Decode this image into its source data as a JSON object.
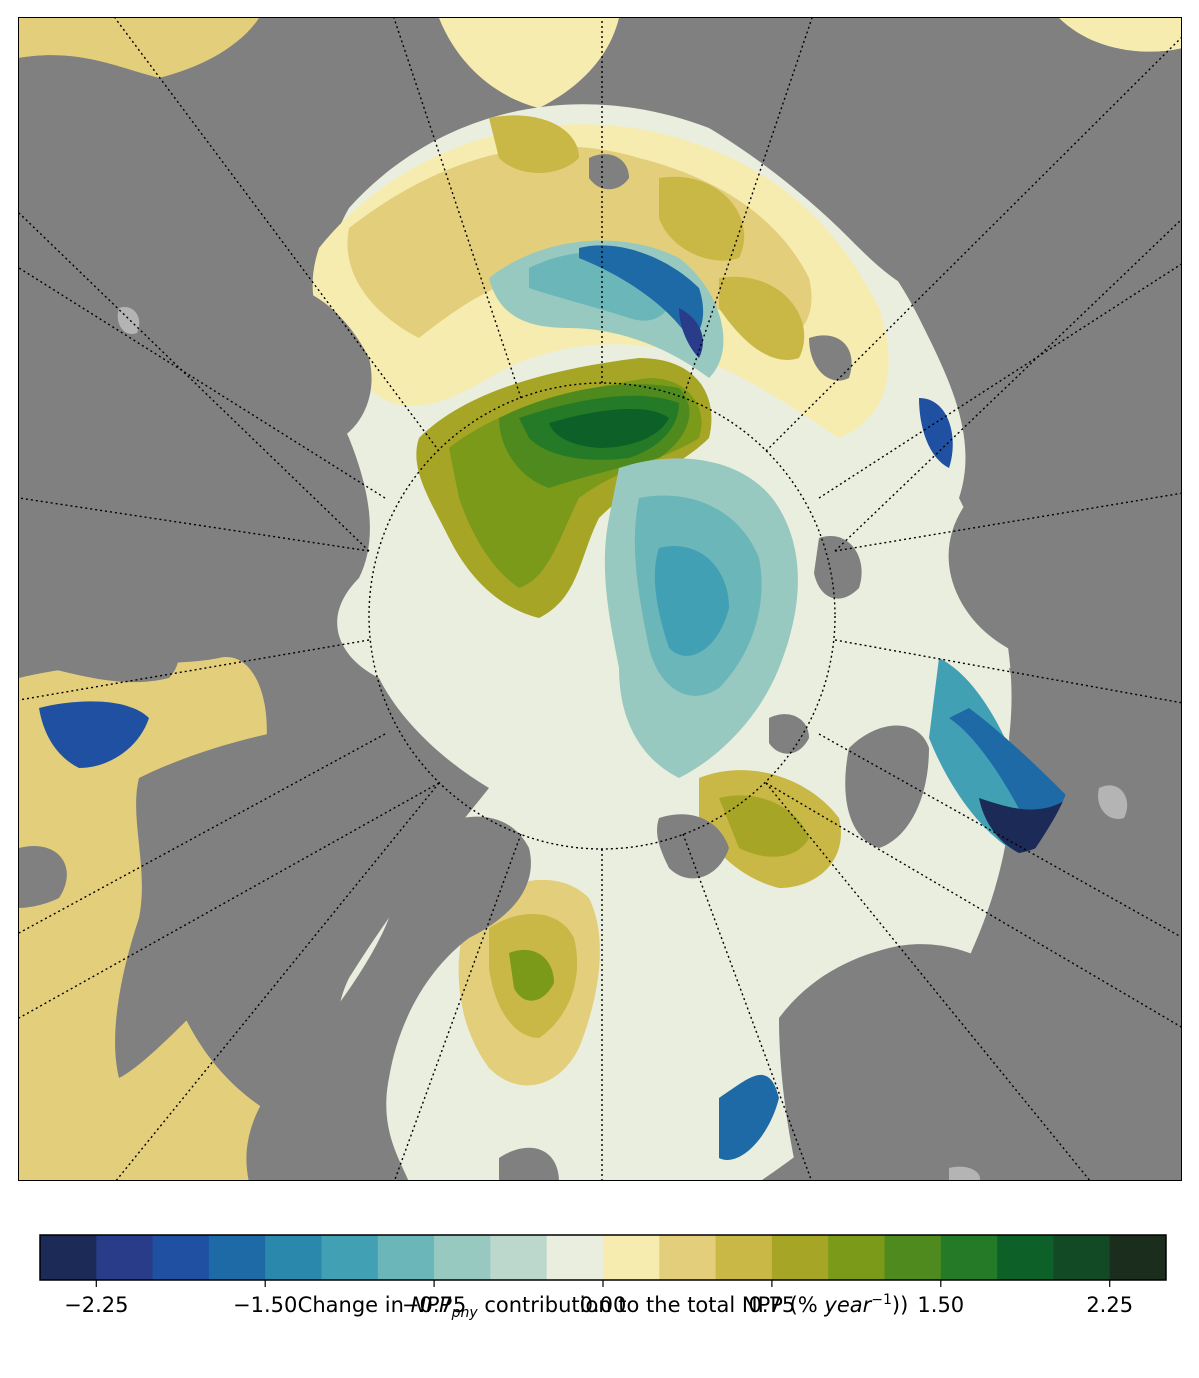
{
  "colors": {
    "land": "#808080",
    "lakes": "#b4b4b4",
    "graticule": "#000000",
    "levels": [
      "#1b2a57",
      "#283c8a",
      "#1f50a2",
      "#1e6aa6",
      "#2b88ad",
      "#42a0b5",
      "#6bb6b8",
      "#98c9c0",
      "#bcd8cc",
      "#eaeedf",
      "#f6ecb0",
      "#e3cf7b",
      "#c9b846",
      "#a7a526",
      "#7c9a1a",
      "#4f8a1e",
      "#257a27",
      "#0d6128",
      "#134a26",
      "#1b2e1d"
    ]
  },
  "colorbar": {
    "min": -2.5,
    "max": 2.5,
    "step": 0.25,
    "ticks": [
      -2.25,
      -1.5,
      -0.75,
      0.0,
      0.75,
      1.5,
      2.25
    ],
    "tick_labels": [
      "−2.25",
      "−1.50",
      "−0.75",
      "0.00",
      "0.75",
      "1.50",
      "2.25"
    ],
    "label_pre": "Change in ",
    "label_var": "NPP",
    "label_sub": "phy",
    "label_mid": " contribution to the total NPP (% ",
    "label_unit": "year",
    "label_sup": "−1",
    "label_post": "))"
  },
  "map": {
    "projection": "north-polar-stereographic",
    "graticule": "dotted meridians and polar circle"
  }
}
